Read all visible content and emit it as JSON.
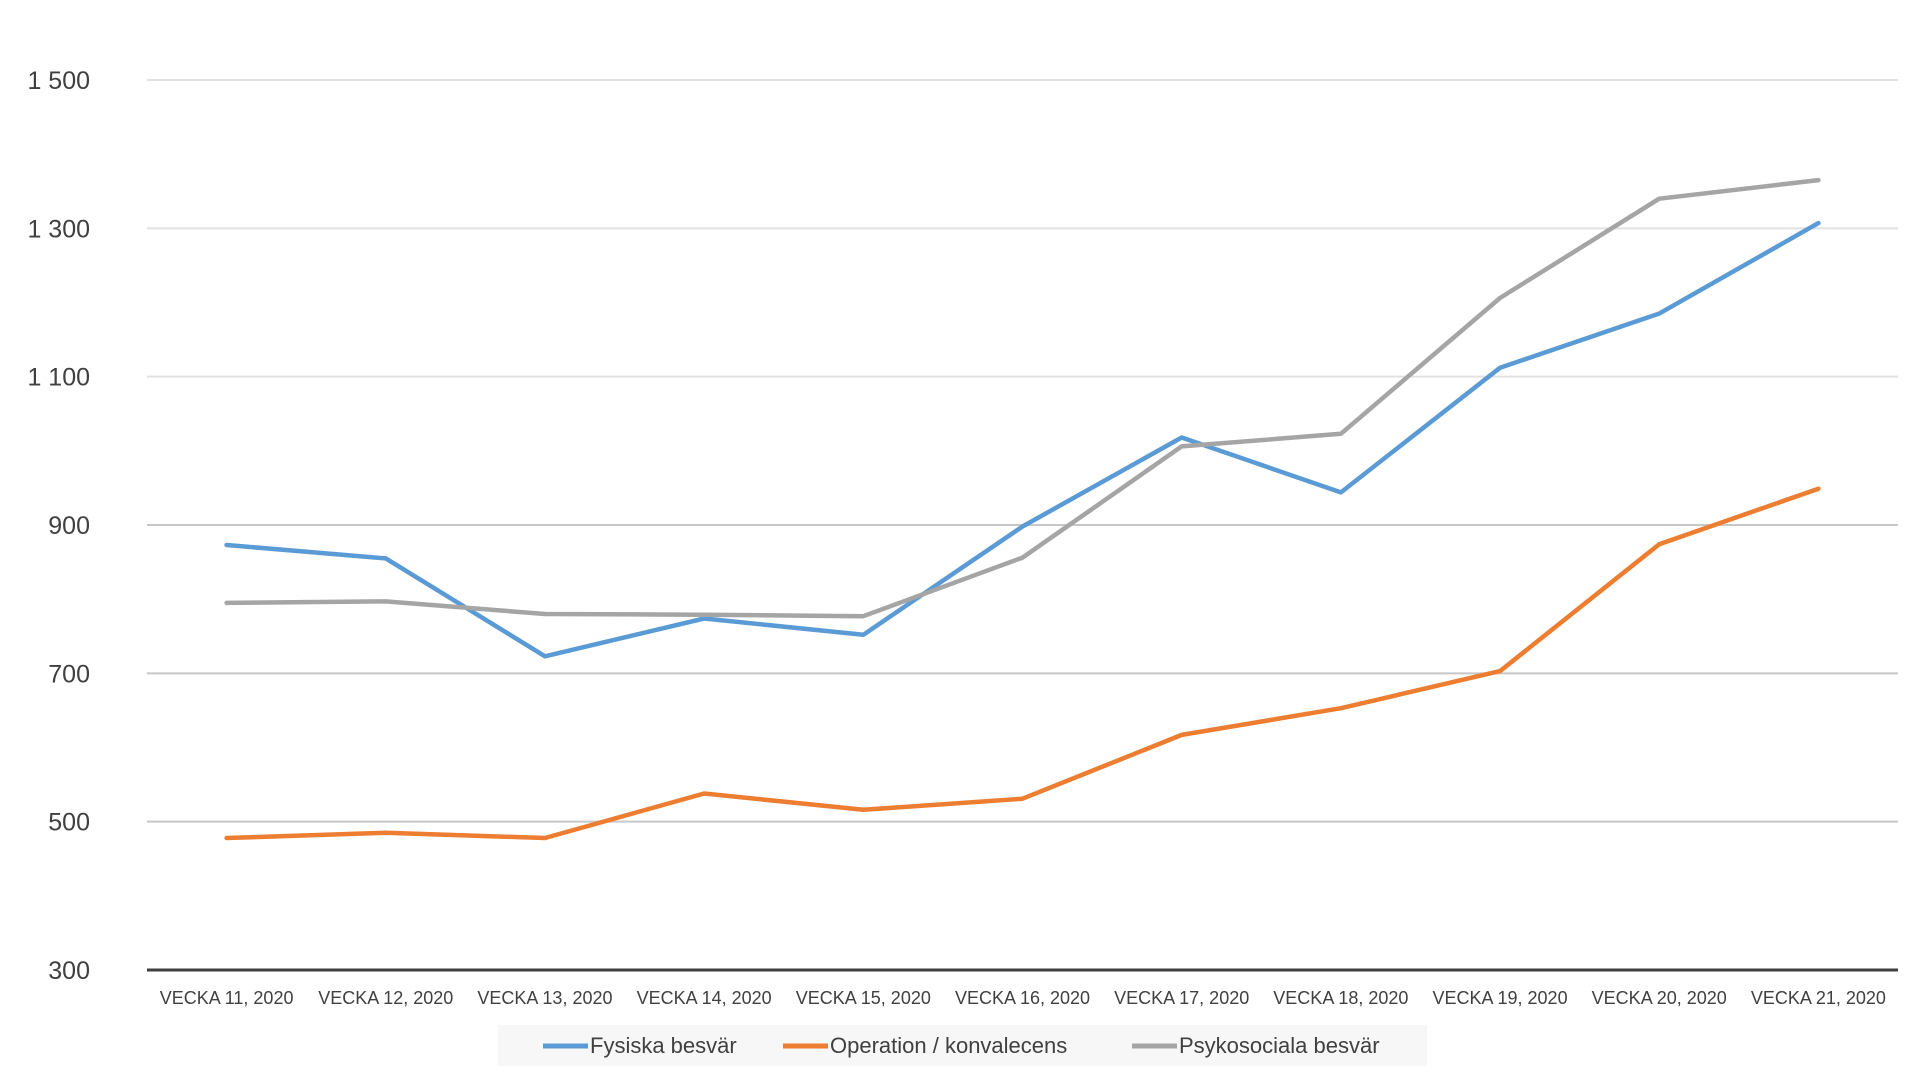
{
  "chart_data": {
    "type": "line",
    "title": "",
    "xlabel": "",
    "ylabel": "",
    "categories": [
      "VECKA 11, 2020",
      "VECKA 12, 2020",
      "VECKA 13, 2020",
      "VECKA 14, 2020",
      "VECKA 15, 2020",
      "VECKA 16, 2020",
      "VECKA 17, 2020",
      "VECKA 18, 2020",
      "VECKA 19, 2020",
      "VECKA 20, 2020",
      "VECKA 21, 2020"
    ],
    "ylim": [
      300,
      1500
    ],
    "yticks": [
      300,
      500,
      700,
      900,
      1100,
      1300,
      1500
    ],
    "ytick_labels": [
      "300",
      "500",
      "700",
      "900",
      "1 100",
      "1 300",
      "1 500"
    ],
    "grid": true,
    "legend_position": "bottom",
    "series": [
      {
        "name": "Fysiska besvär",
        "color": "#5B9BD5",
        "values": [
          873,
          855,
          723,
          774,
          752,
          898,
          1018,
          944,
          1112,
          1185,
          1307
        ]
      },
      {
        "name": "Operation / konvalecens",
        "color": "#ED7D31",
        "values": [
          478,
          485,
          478,
          538,
          516,
          531,
          617,
          653,
          703,
          874,
          949
        ]
      },
      {
        "name": "Psykosociala besvär",
        "color": "#A5A5A5",
        "values": [
          795,
          797,
          780,
          779,
          777,
          856,
          1006,
          1023,
          1206,
          1340,
          1365
        ]
      }
    ]
  }
}
